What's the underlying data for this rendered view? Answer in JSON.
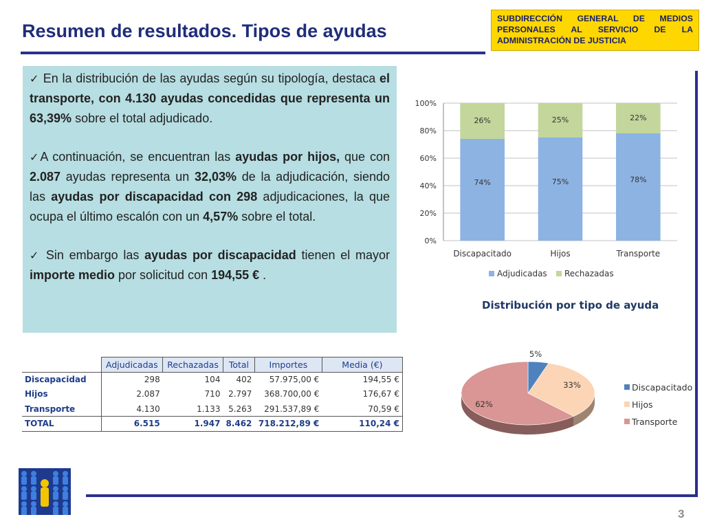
{
  "header": {
    "title": "Resumen de resultados. Tipos de ayudas",
    "org": "SUBDIRECCIÓN GENERAL DE MEDIOS PERSONALES AL SERVICIO DE LA ADMINISTRACIÓN DE JUSTICIA"
  },
  "summary": {
    "check": "✓",
    "p1": [
      " En la distribución de las ayudas según su tipología, destaca ",
      "el transporte, con 4.130 ayudas concedidas que representa un 63,39%",
      " sobre el total adjudicado."
    ],
    "p2": [
      "A continuación, se encuentran las ",
      "ayudas por hijos,",
      " que con ",
      "2.087",
      " ayudas representa un ",
      "32,03%",
      " de la adjudicación, siendo las ",
      "ayudas por discapacidad con 298",
      " adjudicaciones, la que ocupa el último escalón con un ",
      "4,57%",
      " sobre el total."
    ],
    "p3": [
      " Sin embargo las ",
      "ayudas por discapacidad",
      " tienen el mayor ",
      "importe medio",
      " por solicitud con ",
      "194,55 €",
      " ."
    ]
  },
  "table": {
    "headers": [
      "Adjudicadas",
      "Rechazadas",
      "Total",
      "Importes",
      "Media (€)"
    ],
    "rows": [
      {
        "label": "Discapacidad",
        "adjudicadas": "298",
        "rechazadas": "104",
        "total": "402",
        "importes": "57.975,00 €",
        "media": "194,55 €"
      },
      {
        "label": "Hijos",
        "adjudicadas": "2.087",
        "rechazadas": "710",
        "total": "2.797",
        "importes": "368.700,00 €",
        "media": "176,67 €"
      },
      {
        "label": "Transporte",
        "adjudicadas": "4.130",
        "rechazadas": "1.133",
        "total": "5.263",
        "importes": "291.537,89 €",
        "media": "70,59 €"
      }
    ],
    "total": {
      "label": "TOTAL",
      "adjudicadas": "6.515",
      "rechazadas": "1.947",
      "total": "8.462",
      "importes": "718.212,89 €",
      "media": "110,24 €"
    }
  },
  "chart_data": [
    {
      "type": "bar",
      "stacked": true,
      "percent": true,
      "categories": [
        "Discapacitado",
        "Hijos",
        "Transporte"
      ],
      "series": [
        {
          "name": "Adjudicadas",
          "values": [
            74,
            75,
            78
          ],
          "labels": [
            "74%",
            "75%",
            "78%"
          ]
        },
        {
          "name": "Rechazadas",
          "values": [
            26,
            25,
            22
          ],
          "labels": [
            "26%",
            "25%",
            "22%"
          ]
        }
      ],
      "yticks": [
        "0%",
        "20%",
        "40%",
        "60%",
        "80%",
        "100%"
      ],
      "ylim": [
        0,
        100
      ],
      "legend": "bottom",
      "colors": [
        "#8db3e2",
        "#c3d69b"
      ]
    },
    {
      "type": "pie",
      "title": "Distribución por tipo de ayuda",
      "labels": [
        "Discapacitado",
        "Hijos",
        "Transporte"
      ],
      "values": [
        5,
        33,
        62
      ],
      "value_labels": [
        "5%",
        "33%",
        "62%"
      ],
      "legend": "right",
      "colors": [
        "#4f81bd",
        "#fbd5b5",
        "#d99694"
      ]
    }
  ],
  "footer": {
    "page": "3"
  }
}
